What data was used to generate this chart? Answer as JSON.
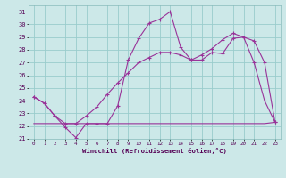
{
  "xlabel": "Windchill (Refroidissement éolien,°C)",
  "background_color": "#cce8e8",
  "grid_color": "#99cccc",
  "line_color": "#993399",
  "x_ticks": [
    0,
    1,
    2,
    3,
    4,
    5,
    6,
    7,
    8,
    9,
    10,
    11,
    12,
    13,
    14,
    15,
    16,
    17,
    18,
    19,
    20,
    21,
    22,
    23
  ],
  "ylim": [
    21,
    31.5
  ],
  "yticks": [
    21,
    22,
    23,
    24,
    25,
    26,
    27,
    28,
    29,
    30,
    31
  ],
  "xlim": [
    -0.5,
    23.5
  ],
  "line1_x": [
    0,
    1,
    2,
    3,
    4,
    5,
    6,
    7,
    8,
    9,
    10,
    11,
    12,
    13,
    14,
    15,
    16,
    17,
    18,
    19,
    20,
    21,
    22,
    23
  ],
  "line1_y": [
    24.3,
    23.8,
    22.8,
    21.9,
    21.1,
    22.2,
    22.2,
    22.2,
    23.6,
    27.2,
    28.9,
    30.1,
    30.4,
    31.0,
    28.2,
    27.2,
    27.2,
    27.8,
    27.7,
    28.9,
    29.0,
    27.0,
    24.0,
    22.3
  ],
  "line2_x": [
    0,
    1,
    2,
    3,
    4,
    5,
    6,
    7,
    8,
    9,
    10,
    11,
    12,
    13,
    14,
    15,
    16,
    17,
    18,
    19,
    20,
    21,
    22,
    23
  ],
  "line2_y": [
    22.2,
    22.2,
    22.2,
    22.2,
    22.2,
    22.2,
    22.2,
    22.2,
    22.2,
    22.2,
    22.2,
    22.2,
    22.2,
    22.2,
    22.2,
    22.2,
    22.2,
    22.2,
    22.2,
    22.2,
    22.2,
    22.2,
    22.2,
    22.3
  ],
  "line3_x": [
    0,
    1,
    2,
    3,
    4,
    5,
    6,
    7,
    8,
    9,
    10,
    11,
    12,
    13,
    14,
    15,
    16,
    17,
    18,
    19,
    20,
    21,
    22,
    23
  ],
  "line3_y": [
    24.3,
    23.8,
    22.8,
    22.2,
    22.2,
    22.8,
    23.5,
    24.5,
    25.4,
    26.2,
    27.0,
    27.4,
    27.8,
    27.8,
    27.6,
    27.2,
    27.6,
    28.1,
    28.8,
    29.3,
    29.0,
    28.7,
    27.0,
    22.3
  ]
}
